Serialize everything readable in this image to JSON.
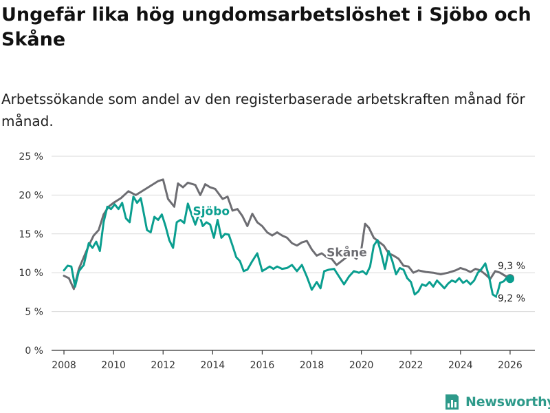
{
  "header": {
    "title": "Ungefär lika hög ungdomsarbetslöshet i Sjöbo och Skåne",
    "subtitle": "Arbetssökande som andel av den registerbaserade arbetskraften månad för månad."
  },
  "brand": {
    "name": "Newsworthy"
  },
  "colors": {
    "sjobo": "#0a9e8f",
    "skane": "#6d6d72",
    "grid": "#d9d9d9",
    "axis": "#333333",
    "brand": "#2e9a8a"
  },
  "chart_data": {
    "type": "line",
    "ylim": [
      0,
      25
    ],
    "xlim": [
      2007.5,
      2027.0
    ],
    "y_ticks": [
      0,
      5,
      10,
      15,
      20,
      25
    ],
    "y_tick_labels": [
      "0 %",
      "5 %",
      "10 %",
      "15 %",
      "20 %",
      "25 %"
    ],
    "x_ticks": [
      2008,
      2010,
      2012,
      2014,
      2016,
      2018,
      2020,
      2022,
      2024,
      2026
    ],
    "x_tick_labels": [
      "2008",
      "2010",
      "2012",
      "2014",
      "2016",
      "2018",
      "2020",
      "2022",
      "2024",
      "2026"
    ],
    "series": [
      {
        "name": "Skåne",
        "label": "Skåne",
        "end_label": "9,3 %",
        "x": [
          2008.0,
          2008.2,
          2008.4,
          2008.6,
          2008.8,
          2009.0,
          2009.2,
          2009.4,
          2009.6,
          2009.8,
          2010.0,
          2010.3,
          2010.6,
          2010.9,
          2011.2,
          2011.5,
          2011.8,
          2012.0,
          2012.2,
          2012.45,
          2012.6,
          2012.8,
          2013.0,
          2013.3,
          2013.5,
          2013.7,
          2013.9,
          2014.1,
          2014.4,
          2014.6,
          2014.8,
          2015.0,
          2015.2,
          2015.4,
          2015.6,
          2015.8,
          2016.0,
          2016.2,
          2016.4,
          2016.6,
          2016.8,
          2017.0,
          2017.2,
          2017.4,
          2017.6,
          2017.8,
          2018.0,
          2018.2,
          2018.4,
          2018.6,
          2018.8,
          2019.0,
          2019.2,
          2019.4,
          2019.6,
          2019.8,
          2020.0,
          2020.15,
          2020.3,
          2020.5,
          2020.7,
          2020.9,
          2021.1,
          2021.3,
          2021.5,
          2021.7,
          2021.9,
          2022.1,
          2022.3,
          2022.6,
          2022.9,
          2023.2,
          2023.5,
          2023.8,
          2024.0,
          2024.2,
          2024.4,
          2024.6,
          2024.8,
          2025.0,
          2025.2,
          2025.4,
          2025.6,
          2025.8,
          2026.0
        ],
        "values": [
          9.6,
          9.3,
          7.9,
          10.5,
          12.0,
          13.5,
          14.8,
          15.5,
          17.5,
          18.5,
          19.0,
          19.6,
          20.5,
          20.0,
          20.6,
          21.2,
          21.8,
          22.0,
          19.5,
          18.5,
          21.5,
          21.0,
          21.6,
          21.3,
          20.0,
          21.4,
          21.0,
          20.8,
          19.5,
          19.8,
          18.0,
          18.2,
          17.3,
          16.0,
          17.6,
          16.5,
          16.0,
          15.2,
          14.8,
          15.2,
          14.8,
          14.5,
          13.8,
          13.5,
          13.9,
          14.1,
          13.0,
          12.2,
          12.5,
          12.0,
          11.8,
          11.0,
          11.5,
          12.0,
          12.3,
          11.8,
          13.0,
          16.3,
          15.8,
          14.5,
          14.0,
          13.5,
          12.5,
          12.2,
          11.8,
          10.9,
          10.8,
          10.0,
          10.3,
          10.1,
          10.0,
          9.8,
          10.0,
          10.3,
          10.6,
          10.4,
          10.1,
          10.5,
          10.3,
          9.8,
          9.2,
          10.2,
          10.0,
          9.6,
          9.3
        ]
      },
      {
        "name": "Sjöbo",
        "label": "Sjöbo",
        "end_label": "9,2 %",
        "x": [
          2008.0,
          2008.15,
          2008.3,
          2008.45,
          2008.6,
          2008.8,
          2009.0,
          2009.15,
          2009.3,
          2009.45,
          2009.6,
          2009.75,
          2009.9,
          2010.05,
          2010.2,
          2010.35,
          2010.5,
          2010.65,
          2010.8,
          2010.95,
          2011.1,
          2011.2,
          2011.35,
          2011.5,
          2011.65,
          2011.8,
          2011.95,
          2012.1,
          2012.25,
          2012.4,
          2012.55,
          2012.7,
          2012.85,
          2013.0,
          2013.15,
          2013.3,
          2013.45,
          2013.6,
          2013.75,
          2013.9,
          2014.05,
          2014.2,
          2014.35,
          2014.5,
          2014.65,
          2014.8,
          2014.95,
          2015.1,
          2015.25,
          2015.4,
          2015.6,
          2015.8,
          2016.0,
          2016.15,
          2016.3,
          2016.45,
          2016.6,
          2016.8,
          2017.0,
          2017.2,
          2017.4,
          2017.6,
          2017.8,
          2018.0,
          2018.2,
          2018.35,
          2018.5,
          2018.7,
          2018.9,
          2019.1,
          2019.3,
          2019.5,
          2019.7,
          2019.9,
          2020.05,
          2020.2,
          2020.35,
          2020.5,
          2020.65,
          2020.8,
          2020.95,
          2021.1,
          2021.25,
          2021.4,
          2021.55,
          2021.7,
          2021.85,
          2022.0,
          2022.15,
          2022.3,
          2022.45,
          2022.6,
          2022.75,
          2022.9,
          2023.05,
          2023.2,
          2023.35,
          2023.5,
          2023.65,
          2023.8,
          2023.95,
          2024.1,
          2024.25,
          2024.4,
          2024.55,
          2024.7,
          2024.85,
          2025.0,
          2025.15,
          2025.3,
          2025.45,
          2025.6,
          2025.75,
          2025.9,
          2026.0
        ],
        "values": [
          10.3,
          10.9,
          10.8,
          8.2,
          10.2,
          11.0,
          13.8,
          13.2,
          14.0,
          12.8,
          16.5,
          18.5,
          18.2,
          18.8,
          18.2,
          19.0,
          17.0,
          16.5,
          19.8,
          19.0,
          19.6,
          18.0,
          15.5,
          15.2,
          17.2,
          16.8,
          17.5,
          16.0,
          14.2,
          13.2,
          16.5,
          16.8,
          16.4,
          18.9,
          17.5,
          16.2,
          17.6,
          16.0,
          16.5,
          16.2,
          14.5,
          16.8,
          14.5,
          15.0,
          14.9,
          13.5,
          12.0,
          11.5,
          10.2,
          10.4,
          11.5,
          12.5,
          10.2,
          10.5,
          10.8,
          10.5,
          10.8,
          10.5,
          10.6,
          11.0,
          10.2,
          11.0,
          9.5,
          7.8,
          8.8,
          8.0,
          10.2,
          10.4,
          10.5,
          9.5,
          8.5,
          9.5,
          10.2,
          10.0,
          10.2,
          9.8,
          10.8,
          13.5,
          14.2,
          12.5,
          10.5,
          12.8,
          11.5,
          9.8,
          10.6,
          10.4,
          9.3,
          8.8,
          7.2,
          7.6,
          8.5,
          8.3,
          8.8,
          8.2,
          9.0,
          8.5,
          8.0,
          8.6,
          9.0,
          8.8,
          9.3,
          8.7,
          9.0,
          8.5,
          9.0,
          10.0,
          10.5,
          11.2,
          9.5,
          7.2,
          6.9,
          8.7,
          8.9,
          9.5,
          9.2
        ]
      }
    ]
  }
}
